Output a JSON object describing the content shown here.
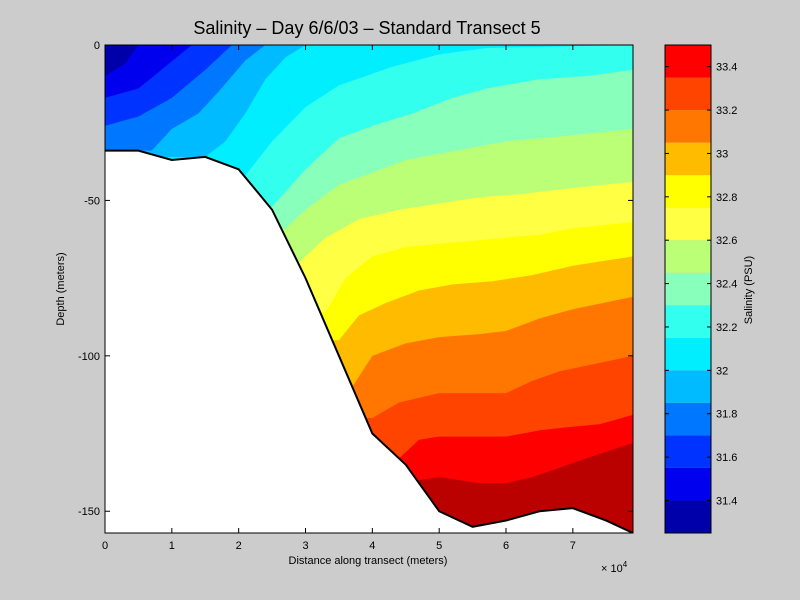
{
  "chart_data": [
    {
      "type": "contourf",
      "title": "Salinity – Day 6/6/03 – Standard Transect 5",
      "xlabel": "Distance along transect (meters)",
      "ylabel": "Depth (meters)",
      "x_multiplier_label": "× 10",
      "x_multiplier_exponent": "4",
      "xlim": [
        0,
        79000
      ],
      "ylim": [
        -157,
        0
      ],
      "xticks": [
        0,
        10000,
        20000,
        30000,
        40000,
        50000,
        60000,
        70000
      ],
      "xtick_labels": [
        "0",
        "1",
        "2",
        "3",
        "4",
        "5",
        "6",
        "7"
      ],
      "yticks": [
        0,
        -50,
        -100,
        -150
      ],
      "ytick_labels": [
        "0",
        "-50",
        "-100",
        "-150"
      ],
      "bottom_profile": [
        [
          0,
          -34
        ],
        [
          5000,
          -34
        ],
        [
          10000,
          -37
        ],
        [
          15000,
          -36
        ],
        [
          20000,
          -40
        ],
        [
          25000,
          -53
        ],
        [
          30000,
          -75
        ],
        [
          35000,
          -100
        ],
        [
          40000,
          -125
        ],
        [
          45000,
          -135
        ],
        [
          50000,
          -150
        ],
        [
          55000,
          -155
        ],
        [
          60000,
          -153
        ],
        [
          65000,
          -150
        ],
        [
          70000,
          -149
        ],
        [
          75000,
          -153
        ],
        [
          79000,
          -157
        ]
      ],
      "isolines": [
        {
          "level": 31.3,
          "points": [
            [
              0,
              -10
            ],
            [
              3000,
              -6
            ],
            [
              5000,
              0
            ]
          ]
        },
        {
          "level": 31.45,
          "points": [
            [
              0,
              -17
            ],
            [
              5000,
              -14
            ],
            [
              9000,
              -7
            ],
            [
              13000,
              0
            ]
          ]
        },
        {
          "level": 31.6,
          "points": [
            [
              0,
              -26
            ],
            [
              5000,
              -23
            ],
            [
              10000,
              -17
            ],
            [
              15000,
              -8
            ],
            [
              19000,
              0
            ]
          ]
        },
        {
          "level": 31.75,
          "points": [
            [
              7000,
              -34
            ],
            [
              10000,
              -27
            ],
            [
              14000,
              -22
            ],
            [
              17000,
              -15
            ],
            [
              21000,
              -5
            ],
            [
              24000,
              0
            ]
          ]
        },
        {
          "level": 31.9,
          "points": [
            [
              15000,
              -36
            ],
            [
              18000,
              -31
            ],
            [
              21000,
              -22
            ],
            [
              24000,
              -11
            ],
            [
              27000,
              -4
            ],
            [
              30000,
              0
            ]
          ]
        },
        {
          "level": 32.05,
          "points": [
            [
              21000,
              -42
            ],
            [
              25000,
              -31
            ],
            [
              30000,
              -20
            ],
            [
              35000,
              -13
            ],
            [
              43000,
              -7
            ],
            [
              50000,
              -3
            ],
            [
              57000,
              -1
            ],
            [
              79000,
              0
            ]
          ]
        },
        {
          "level": 32.2,
          "points": [
            [
              25000,
              -52
            ],
            [
              30000,
              -40
            ],
            [
              35000,
              -30
            ],
            [
              40000,
              -26
            ],
            [
              46000,
              -22
            ],
            [
              52000,
              -17
            ],
            [
              57000,
              -14
            ],
            [
              65000,
              -11
            ],
            [
              72000,
              -10
            ],
            [
              79000,
              -8
            ]
          ]
        },
        {
          "level": 32.35,
          "points": [
            [
              27000,
              -59
            ],
            [
              30000,
              -53
            ],
            [
              35000,
              -45
            ],
            [
              40000,
              -41
            ],
            [
              45000,
              -37
            ],
            [
              50000,
              -35
            ],
            [
              55000,
              -33
            ],
            [
              60000,
              -31
            ],
            [
              65000,
              -30
            ],
            [
              70000,
              -29
            ],
            [
              79000,
              -27
            ]
          ]
        },
        {
          "level": 32.5,
          "points": [
            [
              29000,
              -70
            ],
            [
              33000,
              -62
            ],
            [
              38000,
              -56
            ],
            [
              44000,
              -53
            ],
            [
              50000,
              -51
            ],
            [
              56000,
              -49
            ],
            [
              62000,
              -48
            ],
            [
              70000,
              -46
            ],
            [
              79000,
              -44
            ]
          ]
        },
        {
          "level": 32.65,
          "points": [
            [
              33000,
              -86
            ],
            [
              36000,
              -75
            ],
            [
              40000,
              -68
            ],
            [
              45000,
              -65
            ],
            [
              50000,
              -64
            ],
            [
              55000,
              -63
            ],
            [
              60000,
              -62
            ],
            [
              65000,
              -61
            ],
            [
              70000,
              -59
            ],
            [
              79000,
              -57
            ]
          ]
        },
        {
          "level": 32.8,
          "points": [
            [
              35000,
              -95
            ],
            [
              38000,
              -87
            ],
            [
              42000,
              -83
            ],
            [
              47000,
              -79
            ],
            [
              52000,
              -77
            ],
            [
              58000,
              -76
            ],
            [
              64000,
              -74
            ],
            [
              70000,
              -71
            ],
            [
              79000,
              -68
            ]
          ]
        },
        {
          "level": 32.95,
          "points": [
            [
              37000,
              -110
            ],
            [
              40000,
              -100
            ],
            [
              45000,
              -96
            ],
            [
              50000,
              -94
            ],
            [
              56000,
              -93
            ],
            [
              60000,
              -92
            ],
            [
              65000,
              -88
            ],
            [
              70000,
              -85
            ],
            [
              79000,
              -81
            ]
          ]
        },
        {
          "level": 33.1,
          "points": [
            [
              40000,
              -120
            ],
            [
              44000,
              -115
            ],
            [
              50000,
              -112
            ],
            [
              55000,
              -112
            ],
            [
              60000,
              -112
            ],
            [
              64000,
              -108
            ],
            [
              68000,
              -105
            ],
            [
              79000,
              -100
            ]
          ]
        },
        {
          "level": 33.25,
          "points": [
            [
              44000,
              -133
            ],
            [
              47000,
              -127
            ],
            [
              50000,
              -126
            ],
            [
              55000,
              -126
            ],
            [
              60000,
              -126
            ],
            [
              65000,
              -124
            ],
            [
              69000,
              -123
            ],
            [
              74000,
              -122
            ],
            [
              79000,
              -119
            ]
          ]
        },
        {
          "level": 33.4,
          "points": [
            [
              47000,
              -140
            ],
            [
              50000,
              -139
            ],
            [
              56000,
              -141
            ],
            [
              60000,
              -141
            ],
            [
              64000,
              -139
            ],
            [
              68000,
              -136
            ],
            [
              72000,
              -133
            ],
            [
              79000,
              -128
            ]
          ]
        },
        {
          "level": 33.55,
          "points": [
            [
              71000,
              -149
            ],
            [
              74000,
              -146
            ],
            [
              76000,
              -143
            ],
            [
              79000,
              -140
            ]
          ]
        }
      ],
      "colorbar": {
        "label": "Salinity (PSU)",
        "range": [
          31.25,
          33.5
        ],
        "ticks": [
          31.4,
          31.6,
          31.8,
          32,
          32.2,
          32.4,
          32.6,
          32.8,
          33,
          33.2,
          33.4
        ],
        "tick_labels": [
          "31.4",
          "31.6",
          "31.8",
          "32",
          "32.2",
          "32.4",
          "32.6",
          "32.8",
          "33",
          "33.2",
          "33.4"
        ],
        "levels": [
          {
            "min": 31.25,
            "max": 31.4,
            "color": "#0000aa"
          },
          {
            "min": 31.4,
            "max": 31.55,
            "color": "#0000ee"
          },
          {
            "min": 31.55,
            "max": 31.7,
            "color": "#0033ff"
          },
          {
            "min": 31.7,
            "max": 31.85,
            "color": "#0077ff"
          },
          {
            "min": 31.85,
            "max": 32.0,
            "color": "#00bbff"
          },
          {
            "min": 32.0,
            "max": 32.15,
            "color": "#00eeff"
          },
          {
            "min": 32.15,
            "max": 32.3,
            "color": "#33ffee"
          },
          {
            "min": 32.3,
            "max": 32.45,
            "color": "#88ffbb"
          },
          {
            "min": 32.45,
            "max": 32.6,
            "color": "#bbff77"
          },
          {
            "min": 32.6,
            "max": 32.75,
            "color": "#ffff44"
          },
          {
            "min": 32.75,
            "max": 32.9,
            "color": "#ffff00"
          },
          {
            "min": 32.9,
            "max": 33.05,
            "color": "#ffbb00"
          },
          {
            "min": 33.05,
            "max": 33.2,
            "color": "#ff7700"
          },
          {
            "min": 33.2,
            "max": 33.35,
            "color": "#ff4400"
          },
          {
            "min": 33.35,
            "max": 33.5,
            "color": "#ff0000"
          },
          {
            "min": 33.5,
            "max": 33.65,
            "color": "#bb0000"
          }
        ]
      },
      "bottom_fill_color": "#ffffff",
      "background_color": "#cccccc"
    }
  ]
}
